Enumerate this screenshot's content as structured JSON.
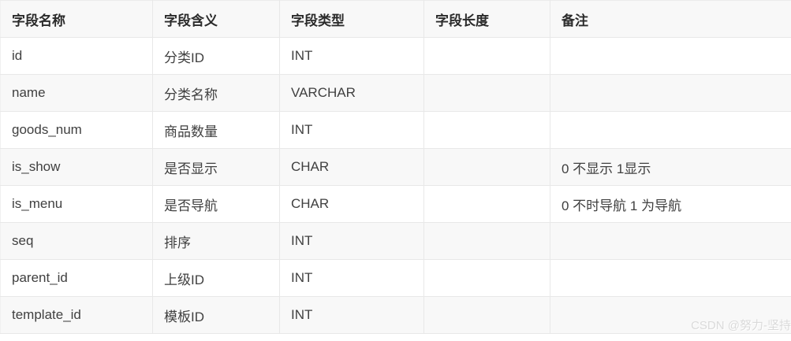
{
  "table": {
    "columns": [
      {
        "key": "field-name",
        "label": "字段名称"
      },
      {
        "key": "field-meaning",
        "label": "字段含义"
      },
      {
        "key": "field-type",
        "label": "字段类型"
      },
      {
        "key": "field-length",
        "label": "字段长度"
      },
      {
        "key": "remark",
        "label": "备注"
      }
    ],
    "rows": [
      {
        "cells": [
          "id",
          "分类ID",
          "INT",
          "",
          ""
        ]
      },
      {
        "cells": [
          "name",
          "分类名称",
          "VARCHAR",
          "",
          ""
        ]
      },
      {
        "cells": [
          "goods_num",
          "商品数量",
          "INT",
          "",
          ""
        ]
      },
      {
        "cells": [
          "is_show",
          "是否显示",
          "CHAR",
          "",
          "0 不显示 1显示"
        ]
      },
      {
        "cells": [
          "is_menu",
          "是否导航",
          "CHAR",
          "",
          "0 不时导航 1 为导航"
        ]
      },
      {
        "cells": [
          "seq",
          "排序",
          "INT",
          "",
          ""
        ]
      },
      {
        "cells": [
          "parent_id",
          "上级ID",
          "INT",
          "",
          ""
        ]
      },
      {
        "cells": [
          "template_id",
          "模板ID",
          "INT",
          "",
          ""
        ]
      }
    ]
  },
  "watermark": {
    "text": "CSDN @努力-坚持"
  },
  "colors": {
    "stripe_bg": "#f8f8f8",
    "row_bg": "#ffffff",
    "grid_border": "#e8e8e8",
    "bottom_border": "#cfcfcf",
    "header_text": "#2b2b2b",
    "cell_text": "#404040",
    "watermark_text": "#dadada"
  }
}
